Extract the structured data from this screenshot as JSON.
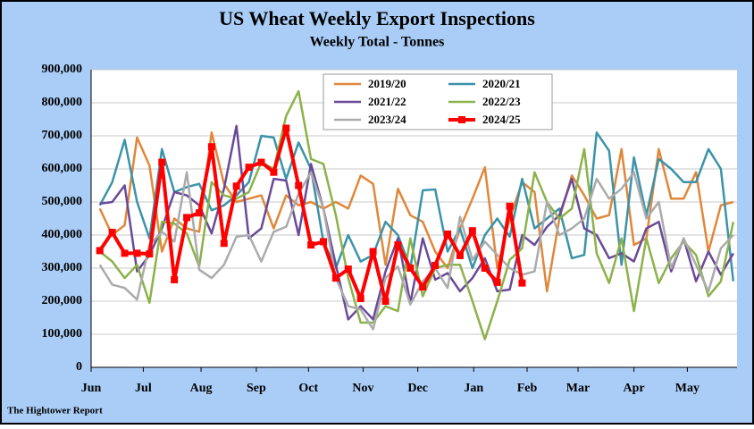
{
  "chart_data": {
    "type": "line",
    "title": "US Wheat Weekly Export Inspections",
    "subtitle": "Weekly Total - Tonnes",
    "footer": "The Hightower Report",
    "x": [
      1,
      2,
      3,
      4,
      5,
      6,
      7,
      8,
      9,
      10,
      11,
      12,
      13,
      14,
      15,
      16,
      17,
      18,
      19,
      20,
      21,
      22,
      23,
      24,
      25,
      26,
      27,
      28,
      29,
      30,
      31,
      32,
      33,
      34,
      35,
      36,
      37,
      38,
      39,
      40,
      41,
      42,
      43,
      44,
      45,
      46,
      47,
      48,
      49,
      50,
      51,
      52
    ],
    "xlim": [
      0.3,
      52.3
    ],
    "xticks": [
      {
        "value": 0.3,
        "label": "Jun"
      },
      {
        "value": 4.5,
        "label": "Jul"
      },
      {
        "value": 9.15,
        "label": "Aug"
      },
      {
        "value": 13.6,
        "label": "Sep"
      },
      {
        "value": 17.8,
        "label": "Oct"
      },
      {
        "value": 22.2,
        "label": "Nov"
      },
      {
        "value": 26.6,
        "label": "Dec"
      },
      {
        "value": 31.1,
        "label": "Jan"
      },
      {
        "value": 35.4,
        "label": "Feb"
      },
      {
        "value": 39.5,
        "label": "Mar"
      },
      {
        "value": 44,
        "label": "Apr"
      },
      {
        "value": 48.3,
        "label": "May"
      }
    ],
    "ylim": [
      0,
      900000
    ],
    "yticks": [
      0,
      {
        "value": 100000,
        "label": "100,000"
      },
      {
        "value": 200000,
        "label": "200,000"
      },
      {
        "value": 300000,
        "label": "300,000"
      },
      {
        "value": 400000,
        "label": "400,000"
      },
      {
        "value": 500000,
        "label": "500,000"
      },
      {
        "value": 600000,
        "label": "600,000"
      },
      {
        "value": 700000,
        "label": "700,000"
      },
      {
        "value": 800000,
        "label": "800,000"
      },
      {
        "value": 900000,
        "label": "900,000"
      }
    ],
    "grid": true,
    "legend": "top",
    "series": [
      {
        "name": "2019/20",
        "color": "#e0873a",
        "width": 2.5,
        "markers": false,
        "values": [
          480000,
          400000,
          430000,
          695000,
          610000,
          350000,
          450000,
          420000,
          410000,
          710000,
          555000,
          500000,
          510000,
          520000,
          420000,
          520000,
          490000,
          500000,
          480000,
          500000,
          480000,
          580000,
          555000,
          310000,
          540000,
          460000,
          440000,
          350000,
          300000,
          420000,
          510000,
          605000,
          300000,
          450000,
          560000,
          530000,
          230000,
          450000,
          580000,
          520000,
          450000,
          460000,
          660000,
          370000,
          390000,
          660000,
          510000,
          510000,
          590000,
          350000,
          490000,
          500000
        ]
      },
      {
        "name": "2020/21",
        "color": "#3b93a8",
        "width": 2.5,
        "markers": false,
        "values": [
          490000,
          560000,
          688000,
          500000,
          390000,
          660000,
          530000,
          545000,
          555000,
          475000,
          490000,
          520000,
          560000,
          700000,
          695000,
          570000,
          680000,
          600000,
          380000,
          300000,
          400000,
          320000,
          340000,
          440000,
          400000,
          300000,
          535000,
          538000,
          350000,
          420000,
          300000,
          400000,
          450000,
          395000,
          570000,
          420000,
          450000,
          480000,
          330000,
          340000,
          710000,
          655000,
          310000,
          635000,
          460000,
          630000,
          600000,
          560000,
          560000,
          660000,
          600000,
          260000
        ]
      },
      {
        "name": "2021/22",
        "color": "#6a4a98",
        "width": 2.5,
        "markers": false,
        "values": [
          495000,
          500000,
          550000,
          290000,
          340000,
          420000,
          530000,
          520000,
          490000,
          405000,
          540000,
          730000,
          390000,
          420000,
          570000,
          565000,
          400000,
          615000,
          480000,
          310000,
          145000,
          185000,
          145000,
          290000,
          390000,
          195000,
          390000,
          265000,
          285000,
          230000,
          270000,
          330000,
          230000,
          235000,
          400000,
          370000,
          425000,
          460000,
          570000,
          420000,
          400000,
          330000,
          345000,
          320000,
          420000,
          440000,
          290000,
          390000,
          260000,
          350000,
          280000,
          345000
        ]
      },
      {
        "name": "2022/23",
        "color": "#8cb24a",
        "width": 2.5,
        "markers": false,
        "values": [
          350000,
          320000,
          270000,
          310000,
          195000,
          440000,
          435000,
          405000,
          305000,
          560000,
          520000,
          510000,
          530000,
          620000,
          600000,
          760000,
          835000,
          630000,
          615000,
          460000,
          270000,
          135000,
          135000,
          185000,
          170000,
          390000,
          215000,
          300000,
          310000,
          310000,
          200000,
          85000,
          200000,
          325000,
          360000,
          590000,
          500000,
          450000,
          480000,
          660000,
          345000,
          255000,
          390000,
          170000,
          390000,
          255000,
          330000,
          380000,
          340000,
          215000,
          260000,
          440000
        ]
      },
      {
        "name": "2023/24",
        "color": "#ababab",
        "width": 2.5,
        "markers": false,
        "values": [
          310000,
          250000,
          240000,
          205000,
          370000,
          410000,
          380000,
          590000,
          295000,
          270000,
          310000,
          395000,
          400000,
          320000,
          410000,
          425000,
          525000,
          590000,
          480000,
          270000,
          185000,
          175000,
          115000,
          270000,
          305000,
          190000,
          260000,
          300000,
          240000,
          455000,
          325000,
          380000,
          340000,
          300000,
          280000,
          290000,
          500000,
          400000,
          420000,
          450000,
          570000,
          510000,
          540000,
          590000,
          450000,
          500000,
          300000,
          390000,
          310000,
          230000,
          360000,
          400000
        ]
      },
      {
        "name": "2024/25",
        "color": "#ff0000",
        "width": 4,
        "markers": true,
        "values": [
          353000,
          408000,
          345000,
          345000,
          343000,
          620000,
          265000,
          453000,
          467000,
          667000,
          375000,
          548000,
          605000,
          620000,
          590000,
          723000,
          550000,
          370000,
          380000,
          270000,
          297000,
          208000,
          350000,
          200000,
          370000,
          300000,
          243000,
          308000,
          403000,
          338000,
          413000,
          300000,
          257000,
          487000,
          255000,
          null,
          null,
          null,
          null,
          null,
          null,
          null,
          null,
          null,
          null,
          null,
          null,
          null,
          null,
          null,
          null,
          null
        ]
      }
    ]
  }
}
